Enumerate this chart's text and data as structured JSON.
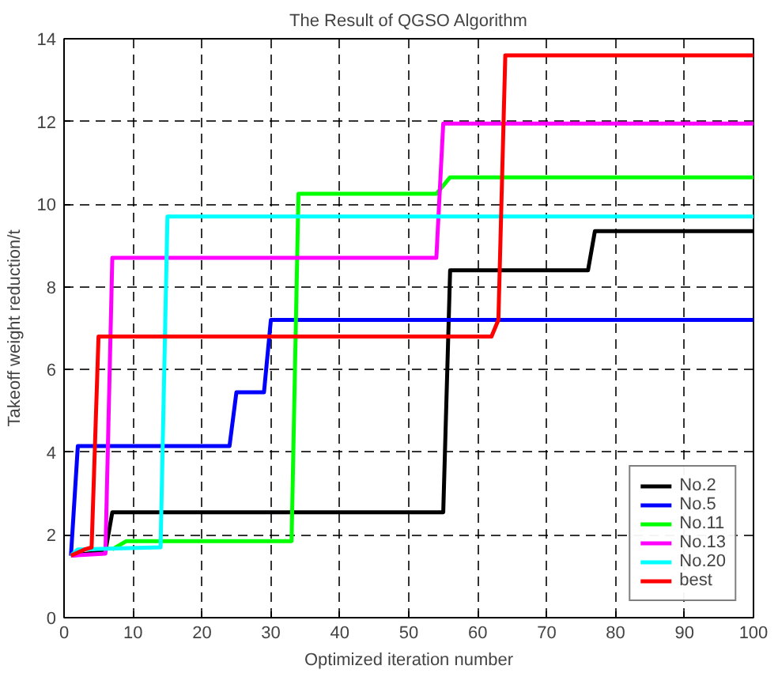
{
  "chart_data": {
    "type": "line",
    "title": "The Result of QGSO Algorithm",
    "xlabel": "Optimized iteration number",
    "ylabel": "Takeoff weight reduction/t",
    "xlim": [
      0,
      100
    ],
    "ylim": [
      0,
      14
    ],
    "xticks": [
      0,
      10,
      20,
      30,
      40,
      50,
      60,
      70,
      80,
      90,
      100
    ],
    "yticks": [
      0,
      2,
      4,
      6,
      8,
      10,
      12,
      14
    ],
    "grid": true,
    "legend": "bottom right",
    "line_style": "solid",
    "series": [
      {
        "name": "No.2",
        "color": "#000000",
        "x": [
          1,
          6,
          7,
          55,
          56,
          76,
          77,
          100
        ],
        "values": [
          1.5,
          1.6,
          2.55,
          2.55,
          8.4,
          8.4,
          9.35,
          9.35
        ]
      },
      {
        "name": "No.5",
        "color": "#0000ff",
        "x": [
          1,
          2,
          24,
          25,
          29,
          30,
          100
        ],
        "values": [
          1.5,
          4.15,
          4.15,
          5.45,
          5.45,
          7.2,
          7.2
        ]
      },
      {
        "name": "No.11",
        "color": "#00ff00",
        "x": [
          7,
          9,
          33,
          34,
          54,
          56,
          100
        ],
        "values": [
          1.65,
          1.85,
          1.85,
          10.25,
          10.25,
          10.65,
          10.65
        ]
      },
      {
        "name": "No.13",
        "color": "#ff00ff",
        "x": [
          1,
          6,
          7,
          54,
          55,
          100
        ],
        "values": [
          1.5,
          1.55,
          8.7,
          8.7,
          11.95,
          11.95
        ]
      },
      {
        "name": "No.20",
        "color": "#00ffff",
        "x": [
          1,
          2,
          14,
          15,
          100
        ],
        "values": [
          1.5,
          1.65,
          1.7,
          9.7,
          9.7
        ]
      },
      {
        "name": "best",
        "color": "#ff0000",
        "x": [
          1,
          3,
          4,
          5,
          62,
          63,
          64,
          100
        ],
        "values": [
          1.5,
          1.65,
          1.7,
          6.8,
          6.8,
          7.2,
          13.6,
          13.6
        ]
      }
    ]
  }
}
